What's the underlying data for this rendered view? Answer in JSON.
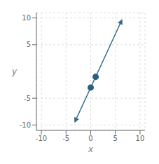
{
  "chart_data": {
    "type": "line",
    "xlabel": "x",
    "ylabel": "y",
    "xlim": [
      -11,
      11
    ],
    "ylim": [
      -11,
      11
    ],
    "xticks": [
      -10,
      -5,
      0,
      5,
      10
    ],
    "yticks": [
      -10,
      -5,
      5,
      10
    ],
    "grid": true,
    "series": [
      {
        "type": "line",
        "color": "#336b87",
        "x": [
          -3.2,
          6.3
        ],
        "values": [
          -9.4,
          9.6
        ]
      },
      {
        "type": "scatter",
        "color": "#2b5f7e",
        "x": [
          0,
          1
        ],
        "values": [
          -3,
          -1
        ]
      }
    ]
  }
}
